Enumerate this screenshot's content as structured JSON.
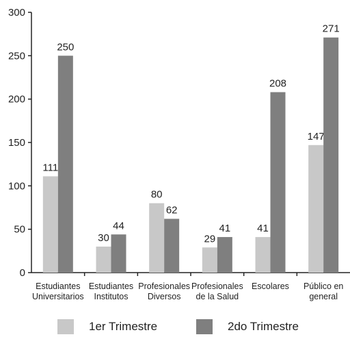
{
  "chart_data": {
    "type": "bar",
    "title": "",
    "xlabel": "",
    "ylabel": "",
    "ylim": [
      0,
      300
    ],
    "yticks": [
      "0",
      "50",
      "100",
      "150",
      "200",
      "250",
      "300"
    ],
    "categories": [
      [
        "Estudiantes",
        "Universitarios"
      ],
      [
        "Estudiantes",
        "Institutos"
      ],
      [
        "Profesionales",
        "Diversos"
      ],
      [
        "Profesionales",
        "de la Salud"
      ],
      [
        "Escolares"
      ],
      [
        "Público en",
        "general"
      ]
    ],
    "series": [
      {
        "name": "1er Trimestre",
        "color": "#c8c8c8",
        "values": [
          111,
          30,
          80,
          29,
          41,
          147
        ]
      },
      {
        "name": "2do Trimestre",
        "color": "#7f7f7f",
        "values": [
          250,
          44,
          62,
          41,
          208,
          271
        ]
      }
    ],
    "grid": false,
    "legend_position": "bottom"
  }
}
